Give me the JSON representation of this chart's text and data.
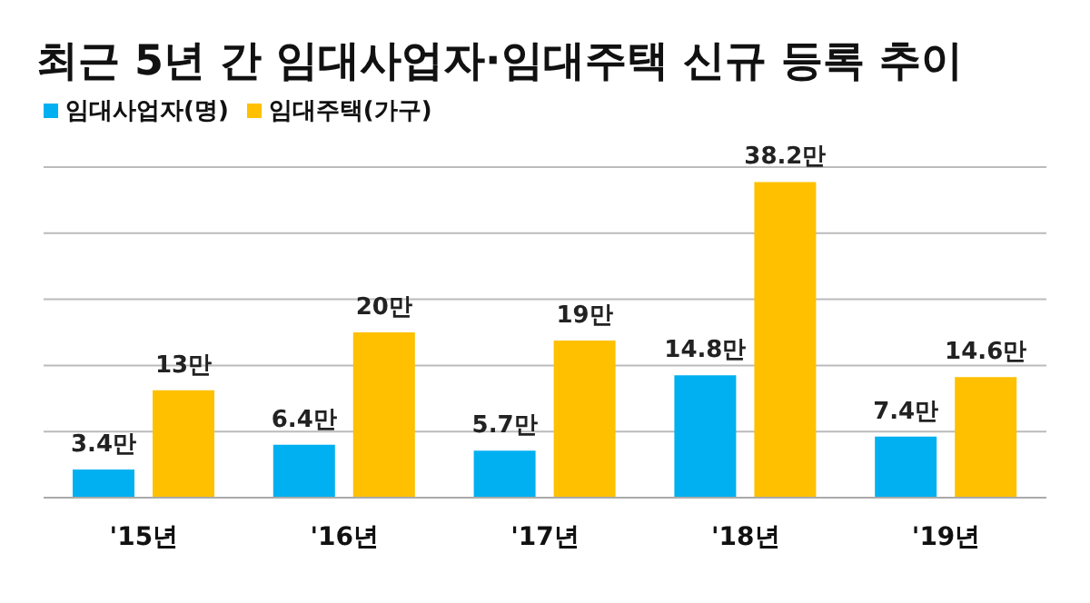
{
  "chart_data": {
    "type": "bar",
    "title": "최근 5년 간 임대사업자·임대주택 신규 등록 추이",
    "categories": [
      "'15년",
      "'16년",
      "'17년",
      "'18년",
      "'19년"
    ],
    "series": [
      {
        "name": "임대사업자(명)",
        "color": "#00b0f0",
        "values": [
          3.4,
          6.4,
          5.7,
          14.8,
          7.4
        ],
        "value_labels": [
          "3.4만",
          "6.4만",
          "5.7만",
          "14.8만",
          "7.4만"
        ]
      },
      {
        "name": "임대주택(가구)",
        "color": "#ffc000",
        "values": [
          13,
          20,
          19,
          38.2,
          14.6
        ],
        "value_labels": [
          "13만",
          "20만",
          "19만",
          "38.2만",
          "14.6만"
        ]
      }
    ],
    "tick_labels": "x",
    "grid": "y",
    "legend": "top left"
  }
}
